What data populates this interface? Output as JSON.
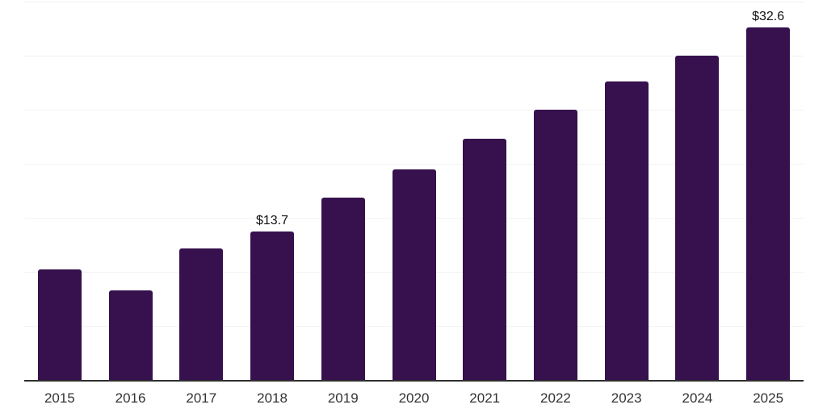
{
  "chart_data": {
    "type": "bar",
    "title": "",
    "xlabel": "",
    "ylabel": "",
    "categories": [
      "2015",
      "2016",
      "2017",
      "2018",
      "2019",
      "2020",
      "2021",
      "2022",
      "2023",
      "2024",
      "2025"
    ],
    "values": [
      10.2,
      8.3,
      12.2,
      13.7,
      16.9,
      19.5,
      22.3,
      25.0,
      27.6,
      30.0,
      32.6
    ],
    "annotations": [
      {
        "index": 3,
        "category": "2018",
        "text": "$13.7"
      },
      {
        "index": 10,
        "category": "2025",
        "text": "$32.6"
      }
    ],
    "ylim": [
      0,
      35
    ],
    "grid_step": 5,
    "grid": true,
    "legend": false,
    "y_axis_labels_visible": false,
    "bar_color": "#36114D",
    "grid_color": "#F2F2F2",
    "axis_color": "#2E2E2E",
    "tick_color": "#333333",
    "annotation_color": "#111111",
    "background": "#FFFFFF"
  }
}
